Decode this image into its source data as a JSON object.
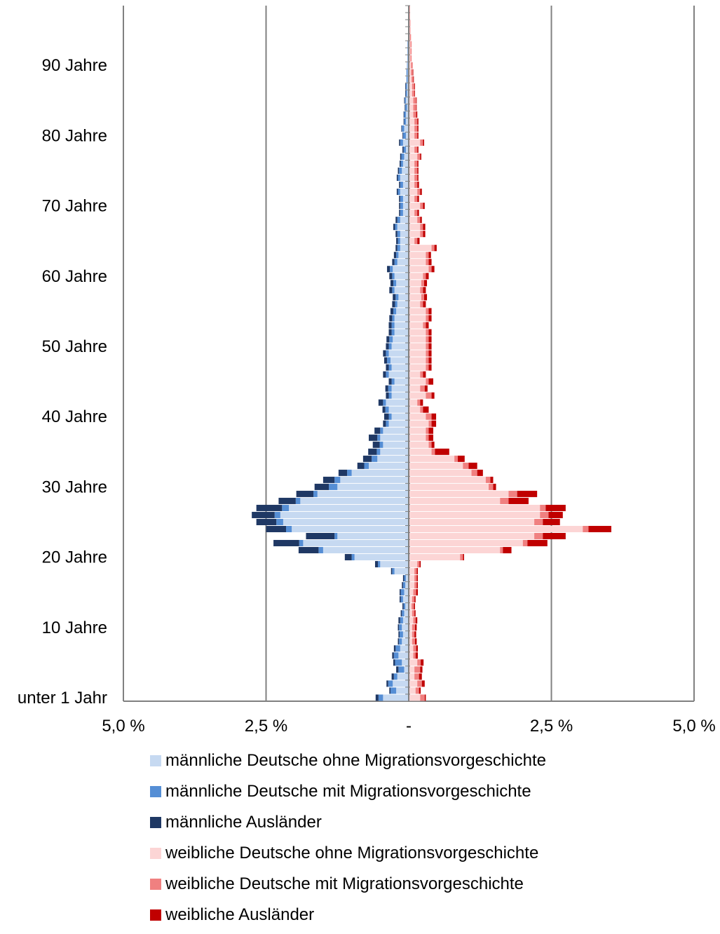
{
  "chart_data": {
    "type": "bar",
    "orientation": "horizontal-pyramid",
    "stacked": true,
    "y_tick_labels": [
      "unter 1 Jahr",
      "10 Jahre",
      "20 Jahre",
      "30 Jahre",
      "40 Jahre",
      "50 Jahre",
      "60 Jahre",
      "70 Jahre",
      "80 Jahre",
      "90 Jahre"
    ],
    "x_tick_labels": [
      "5,0 %",
      "2,5 %",
      "-",
      "2,5 %",
      "5,0 %"
    ],
    "xlim": [
      -5,
      5
    ],
    "ages": [
      0,
      1,
      2,
      3,
      4,
      5,
      6,
      7,
      8,
      9,
      10,
      11,
      12,
      13,
      14,
      15,
      16,
      17,
      18,
      19,
      20,
      21,
      22,
      23,
      24,
      25,
      26,
      27,
      28,
      29,
      30,
      31,
      32,
      33,
      34,
      35,
      36,
      37,
      38,
      39,
      40,
      41,
      42,
      43,
      44,
      45,
      46,
      47,
      48,
      49,
      50,
      51,
      52,
      53,
      54,
      55,
      56,
      57,
      58,
      59,
      60,
      61,
      62,
      63,
      64,
      65,
      66,
      67,
      68,
      69,
      70,
      71,
      72,
      73,
      74,
      75,
      76,
      77,
      78,
      79,
      80,
      81,
      82,
      83,
      84,
      85,
      86,
      87,
      88,
      89,
      90,
      91,
      92,
      93,
      94,
      95,
      96,
      97,
      98
    ],
    "series": [
      {
        "name": "männliche Deutsche ohne Migrationsvorgeschichte",
        "side": "left",
        "color": "#c6d9f1",
        "values": [
          0.45,
          0.22,
          0.28,
          0.2,
          0.08,
          0.12,
          0.18,
          0.15,
          0.12,
          0.1,
          0.12,
          0.1,
          0.08,
          0.06,
          0.1,
          0.08,
          0.06,
          0.05,
          0.25,
          0.5,
          0.95,
          1.5,
          1.85,
          1.25,
          2.05,
          2.2,
          2.25,
          2.1,
          1.9,
          1.6,
          1.25,
          1.2,
          1.0,
          0.7,
          0.55,
          0.5,
          0.45,
          0.5,
          0.45,
          0.35,
          0.3,
          0.35,
          0.4,
          0.3,
          0.3,
          0.25,
          0.35,
          0.3,
          0.32,
          0.35,
          0.3,
          0.28,
          0.25,
          0.25,
          0.25,
          0.22,
          0.2,
          0.18,
          0.25,
          0.22,
          0.25,
          0.28,
          0.2,
          0.18,
          0.15,
          0.15,
          0.15,
          0.2,
          0.15,
          0.1,
          0.1,
          0.1,
          0.15,
          0.1,
          0.15,
          0.12,
          0.1,
          0.08,
          0.05,
          0.1,
          0.05,
          0.08,
          0.05,
          0.05,
          0.03,
          0.05,
          0.03,
          0.03,
          0.02,
          0.02,
          0.02,
          0.01,
          0.01,
          0.01,
          0.0,
          0.0,
          0.0,
          0.0,
          0.0
        ]
      },
      {
        "name": "männliche Deutsche mit Migrationsvorgeschichte",
        "side": "left",
        "color": "#558ed5",
        "values": [
          0.08,
          0.1,
          0.08,
          0.06,
          0.1,
          0.12,
          0.08,
          0.08,
          0.05,
          0.06,
          0.05,
          0.05,
          0.04,
          0.03,
          0.04,
          0.06,
          0.04,
          0.03,
          0.04,
          0.04,
          0.05,
          0.08,
          0.07,
          0.05,
          0.1,
          0.12,
          0.1,
          0.12,
          0.08,
          0.07,
          0.15,
          0.1,
          0.08,
          0.08,
          0.1,
          0.06,
          0.06,
          0.05,
          0.05,
          0.05,
          0.05,
          0.06,
          0.05,
          0.05,
          0.06,
          0.05,
          0.05,
          0.05,
          0.06,
          0.05,
          0.05,
          0.06,
          0.05,
          0.05,
          0.04,
          0.05,
          0.04,
          0.05,
          0.04,
          0.05,
          0.04,
          0.05,
          0.05,
          0.04,
          0.05,
          0.04,
          0.05,
          0.04,
          0.05,
          0.05,
          0.05,
          0.05,
          0.04,
          0.05,
          0.04,
          0.05,
          0.04,
          0.05,
          0.04,
          0.05,
          0.05,
          0.04,
          0.03,
          0.03,
          0.03,
          0.02,
          0.02,
          0.02,
          0.02,
          0.02,
          0.01,
          0.01,
          0.01,
          0.01,
          0.0,
          0.0,
          0.0,
          0.0,
          0.0
        ]
      },
      {
        "name": "männliche Ausländer",
        "side": "left",
        "color": "#1f3864",
        "values": [
          0.05,
          0.02,
          0.03,
          0.04,
          0.04,
          0.03,
          0.03,
          0.03,
          0.02,
          0.02,
          0.02,
          0.03,
          0.02,
          0.02,
          0.02,
          0.02,
          0.02,
          0.02,
          0.02,
          0.05,
          0.12,
          0.35,
          0.45,
          0.5,
          0.35,
          0.35,
          0.4,
          0.45,
          0.3,
          0.3,
          0.25,
          0.2,
          0.15,
          0.12,
          0.15,
          0.15,
          0.12,
          0.15,
          0.1,
          0.05,
          0.08,
          0.05,
          0.08,
          0.05,
          0.05,
          0.05,
          0.05,
          0.05,
          0.05,
          0.05,
          0.05,
          0.05,
          0.05,
          0.05,
          0.05,
          0.05,
          0.05,
          0.05,
          0.05,
          0.05,
          0.05,
          0.05,
          0.04,
          0.04,
          0.03,
          0.03,
          0.03,
          0.03,
          0.03,
          0.02,
          0.02,
          0.02,
          0.02,
          0.02,
          0.02,
          0.02,
          0.02,
          0.02,
          0.02,
          0.02,
          0.01,
          0.01,
          0.01,
          0.01,
          0.01,
          0.01,
          0.01,
          0.01,
          0.0,
          0.0,
          0.0,
          0.0,
          0.0,
          0.0,
          0.0,
          0.0,
          0.0,
          0.0,
          0.0
        ]
      },
      {
        "name": "weibliche Deutsche ohne Migrationsvorgeschichte",
        "side": "right",
        "color": "#fcd5d5",
        "values": [
          0.2,
          0.12,
          0.15,
          0.1,
          0.1,
          0.15,
          0.08,
          0.08,
          0.06,
          0.06,
          0.06,
          0.08,
          0.06,
          0.05,
          0.06,
          0.08,
          0.1,
          0.1,
          0.1,
          0.15,
          0.9,
          1.6,
          2.0,
          2.2,
          3.05,
          2.2,
          2.3,
          2.3,
          1.6,
          1.75,
          1.4,
          1.35,
          1.1,
          0.95,
          0.8,
          0.4,
          0.35,
          0.3,
          0.3,
          0.35,
          0.3,
          0.2,
          0.15,
          0.3,
          0.2,
          0.3,
          0.2,
          0.3,
          0.3,
          0.3,
          0.3,
          0.3,
          0.3,
          0.25,
          0.3,
          0.3,
          0.2,
          0.22,
          0.2,
          0.22,
          0.25,
          0.35,
          0.3,
          0.3,
          0.4,
          0.1,
          0.2,
          0.2,
          0.15,
          0.1,
          0.2,
          0.1,
          0.15,
          0.1,
          0.1,
          0.1,
          0.1,
          0.15,
          0.1,
          0.2,
          0.1,
          0.1,
          0.1,
          0.08,
          0.08,
          0.08,
          0.06,
          0.06,
          0.05,
          0.04,
          0.04,
          0.03,
          0.03,
          0.03,
          0.02,
          0.02,
          0.02,
          0.01,
          0.01
        ]
      },
      {
        "name": "weibliche Deutsche mit Migrationsvorgeschichte",
        "side": "right",
        "color": "#f08080",
        "values": [
          0.08,
          0.06,
          0.08,
          0.08,
          0.1,
          0.06,
          0.04,
          0.05,
          0.05,
          0.04,
          0.05,
          0.04,
          0.04,
          0.04,
          0.04,
          0.05,
          0.04,
          0.04,
          0.04,
          0.04,
          0.05,
          0.05,
          0.08,
          0.15,
          0.1,
          0.15,
          0.15,
          0.1,
          0.15,
          0.15,
          0.08,
          0.08,
          0.1,
          0.1,
          0.06,
          0.06,
          0.05,
          0.05,
          0.05,
          0.05,
          0.1,
          0.05,
          0.05,
          0.1,
          0.08,
          0.05,
          0.05,
          0.05,
          0.05,
          0.05,
          0.05,
          0.05,
          0.05,
          0.05,
          0.05,
          0.05,
          0.05,
          0.05,
          0.05,
          0.05,
          0.05,
          0.05,
          0.05,
          0.05,
          0.05,
          0.05,
          0.05,
          0.05,
          0.05,
          0.05,
          0.05,
          0.05,
          0.05,
          0.05,
          0.05,
          0.05,
          0.05,
          0.05,
          0.05,
          0.05,
          0.05,
          0.05,
          0.05,
          0.05,
          0.05,
          0.05,
          0.04,
          0.04,
          0.03,
          0.03,
          0.03,
          0.02,
          0.02,
          0.02,
          0.02,
          0.01,
          0.01,
          0.01,
          0.01
        ]
      },
      {
        "name": "weibliche Ausländer",
        "side": "right",
        "color": "#c00000",
        "values": [
          0.02,
          0.03,
          0.05,
          0.05,
          0.04,
          0.05,
          0.04,
          0.03,
          0.03,
          0.03,
          0.03,
          0.03,
          0.02,
          0.02,
          0.02,
          0.03,
          0.02,
          0.02,
          0.02,
          0.02,
          0.02,
          0.15,
          0.35,
          0.4,
          0.4,
          0.3,
          0.25,
          0.35,
          0.35,
          0.35,
          0.05,
          0.05,
          0.1,
          0.15,
          0.12,
          0.25,
          0.05,
          0.08,
          0.08,
          0.08,
          0.08,
          0.1,
          0.05,
          0.05,
          0.05,
          0.08,
          0.05,
          0.05,
          0.05,
          0.05,
          0.05,
          0.05,
          0.05,
          0.05,
          0.05,
          0.05,
          0.05,
          0.05,
          0.05,
          0.05,
          0.05,
          0.05,
          0.05,
          0.04,
          0.04,
          0.04,
          0.04,
          0.04,
          0.03,
          0.03,
          0.03,
          0.03,
          0.03,
          0.03,
          0.02,
          0.02,
          0.02,
          0.02,
          0.02,
          0.02,
          0.02,
          0.02,
          0.02,
          0.02,
          0.01,
          0.01,
          0.01,
          0.01,
          0.01,
          0.01,
          0.0,
          0.0,
          0.0,
          0.0,
          0.0,
          0.0,
          0.0,
          0.0,
          0.0
        ]
      }
    ]
  }
}
